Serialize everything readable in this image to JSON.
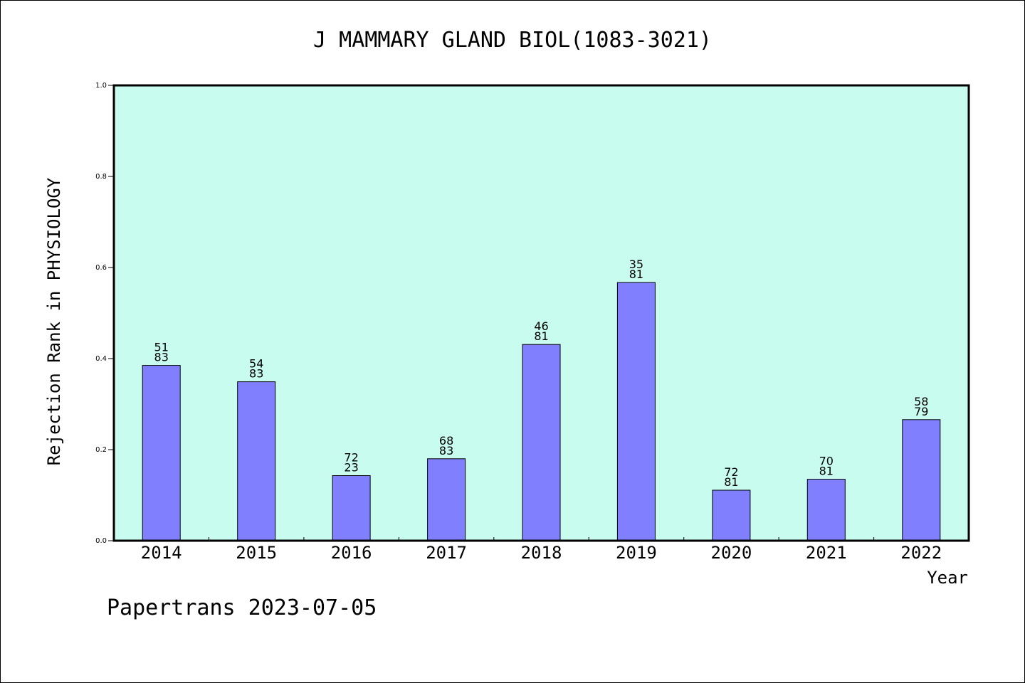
{
  "colors": {
    "plot_background": "#c8fcee",
    "bar_fill": "#8080ff",
    "bar_stroke": "#000000"
  },
  "chart_data": {
    "type": "bar",
    "title": "J MAMMARY GLAND BIOL(1083-3021)",
    "xlabel": "Year",
    "ylabel": "Rejection Rank in PHYSIOLOGY",
    "ylim": [
      0,
      1.0
    ],
    "yticks": [
      "0.0",
      "0.2",
      "0.4",
      "0.6",
      "0.8",
      "1.0"
    ],
    "grid": false,
    "categories": [
      "2014",
      "2015",
      "2016",
      "2017",
      "2018",
      "2019",
      "2020",
      "2021",
      "2022"
    ],
    "values": [
      0.385,
      0.349,
      0.143,
      0.18,
      0.431,
      0.567,
      0.111,
      0.135,
      0.266
    ],
    "annotations": [
      {
        "top": "51",
        "bottom": "83"
      },
      {
        "top": "54",
        "bottom": "83"
      },
      {
        "top": "72",
        "bottom": "23"
      },
      {
        "top": "68",
        "bottom": "83"
      },
      {
        "top": "46",
        "bottom": "81"
      },
      {
        "top": "35",
        "bottom": "81"
      },
      {
        "top": "72",
        "bottom": "81"
      },
      {
        "top": "70",
        "bottom": "81"
      },
      {
        "top": "58",
        "bottom": "79"
      }
    ]
  },
  "footer": {
    "text": "Papertrans 2023-07-05"
  }
}
